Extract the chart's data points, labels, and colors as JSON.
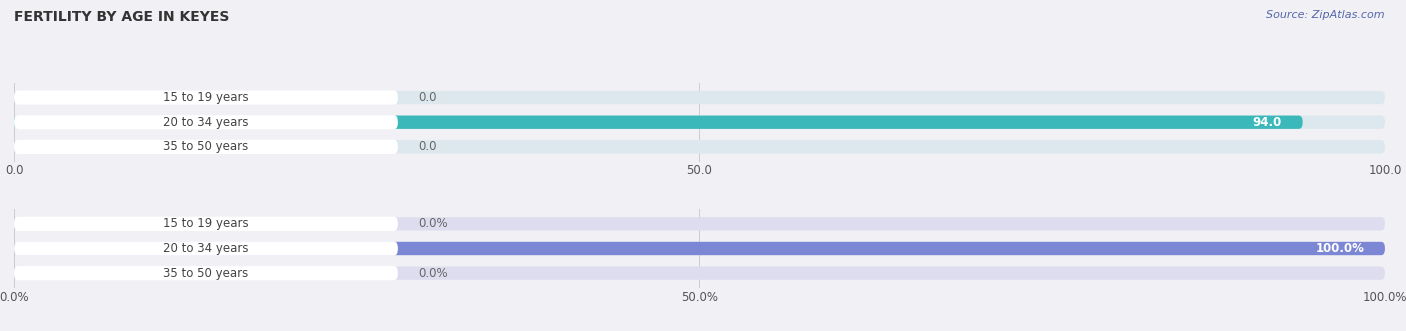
{
  "title": "FERTILITY BY AGE IN KEYES",
  "source": "Source: ZipAtlas.com",
  "top_chart": {
    "categories": [
      "15 to 19 years",
      "20 to 34 years",
      "35 to 50 years"
    ],
    "values": [
      0.0,
      94.0,
      0.0
    ],
    "max_value": 100.0,
    "bar_color": "#3ab8ba",
    "bar_bg_color": "#dde8ee",
    "label_pill_color": "#ffffff",
    "label_text_color": "#444444",
    "value_label_inside_color": "#ffffff",
    "value_label_outside_color": "#666666",
    "x_ticks": [
      0.0,
      50.0,
      100.0
    ],
    "x_tick_labels": [
      "0.0",
      "50.0",
      "100.0"
    ]
  },
  "bottom_chart": {
    "categories": [
      "15 to 19 years",
      "20 to 34 years",
      "35 to 50 years"
    ],
    "values": [
      0.0,
      100.0,
      0.0
    ],
    "max_value": 100.0,
    "bar_color": "#7b86d4",
    "bar_bg_color": "#ddddef",
    "label_pill_color": "#ffffff",
    "label_text_color": "#444444",
    "value_label_inside_color": "#ffffff",
    "value_label_outside_color": "#666666",
    "x_ticks": [
      0.0,
      50.0,
      100.0
    ],
    "x_tick_labels": [
      "0.0%",
      "50.0%",
      "100.0%"
    ]
  },
  "fig_bg_color": "#f0f0f5",
  "grid_color": "#cccccc",
  "title_fontsize": 10,
  "label_fontsize": 8.5,
  "tick_fontsize": 8.5,
  "source_fontsize": 8,
  "fig_width": 14.06,
  "fig_height": 3.31
}
